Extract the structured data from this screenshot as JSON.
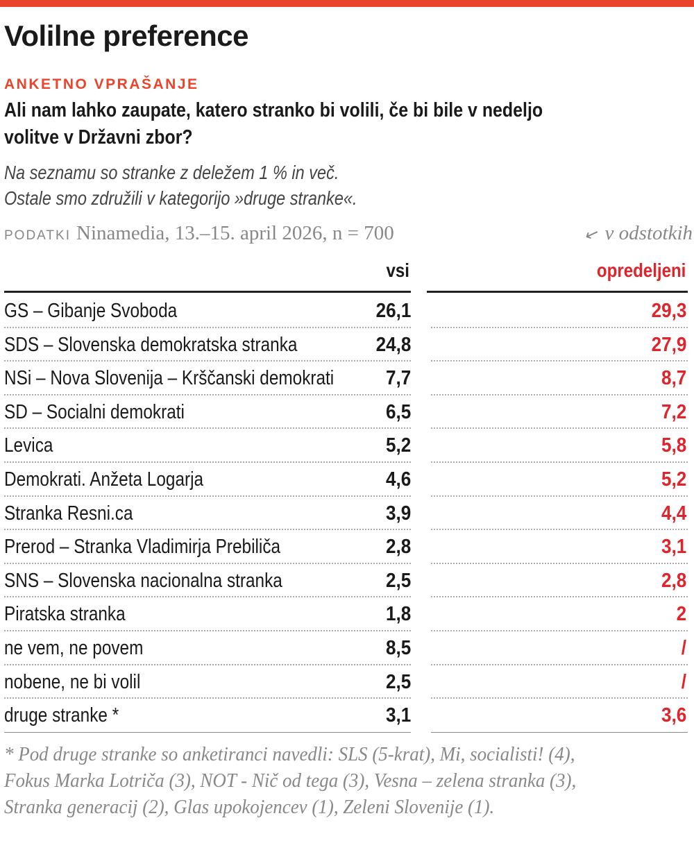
{
  "title": "Volilne preference",
  "kicker": "ANKETNO VPRAŠANJE",
  "question": [
    "Ali nam lahko zaupate, katero stranko bi volili, če bi bile v nedeljo",
    "volitve v Državni zbor?"
  ],
  "note": [
    "Na seznamu so stranke z deležem 1 % in več.",
    "Ostale smo združili v kategorijo »druge stranke«."
  ],
  "source": {
    "label": "PODATKI",
    "text": "Ninamedia, 13.–15. april 2026, n = 700"
  },
  "unit": "v odstotkih",
  "colors": {
    "accent": "#e8452c",
    "red": "#e0242b"
  },
  "columns": {
    "all": "vsi",
    "decided": "opredeljeni"
  },
  "rows": [
    {
      "party": "GS – Gibanje Svoboda",
      "all": "26,1",
      "decided": "29,3"
    },
    {
      "party": "SDS – Slovenska demokratska stranka",
      "all": "24,8",
      "decided": "27,9"
    },
    {
      "party": "NSi – Nova Slovenija – Krščanski demokrati",
      "all": "7,7",
      "decided": "8,7"
    },
    {
      "party": "SD – Socialni demokrati",
      "all": "6,5",
      "decided": "7,2"
    },
    {
      "party": "Levica",
      "all": "5,2",
      "decided": "5,8"
    },
    {
      "party": "Demokrati. Anžeta Logarja",
      "all": "4,6",
      "decided": "5,2"
    },
    {
      "party": "Stranka Resni.ca",
      "all": "3,9",
      "decided": "4,4"
    },
    {
      "party": "Prerod – Stranka Vladimirja Prebiliča",
      "all": "2,8",
      "decided": "3,1"
    },
    {
      "party": "SNS – Slovenska nacionalna stranka",
      "all": "2,5",
      "decided": "2,8"
    },
    {
      "party": "Piratska stranka",
      "all": "1,8",
      "decided": "2"
    },
    {
      "party": "ne vem, ne povem",
      "all": "8,5",
      "decided": "/"
    },
    {
      "party": "nobene, ne bi volil",
      "all": "2,5",
      "decided": "/"
    },
    {
      "party": "druge stranke *",
      "all": "3,1",
      "decided": "3,6"
    }
  ],
  "footnote": [
    "* Pod druge stranke so anketiranci navedli: SLS (5-krat), Mi, socialisti! (4),",
    "Fokus Marka Lotriča (3), NOT - Nič od tega (3), Vesna – zelena stranka (3),",
    "Stranka generacij (2), Glas upokojencev (1), Zeleni Slovenije (1)."
  ]
}
